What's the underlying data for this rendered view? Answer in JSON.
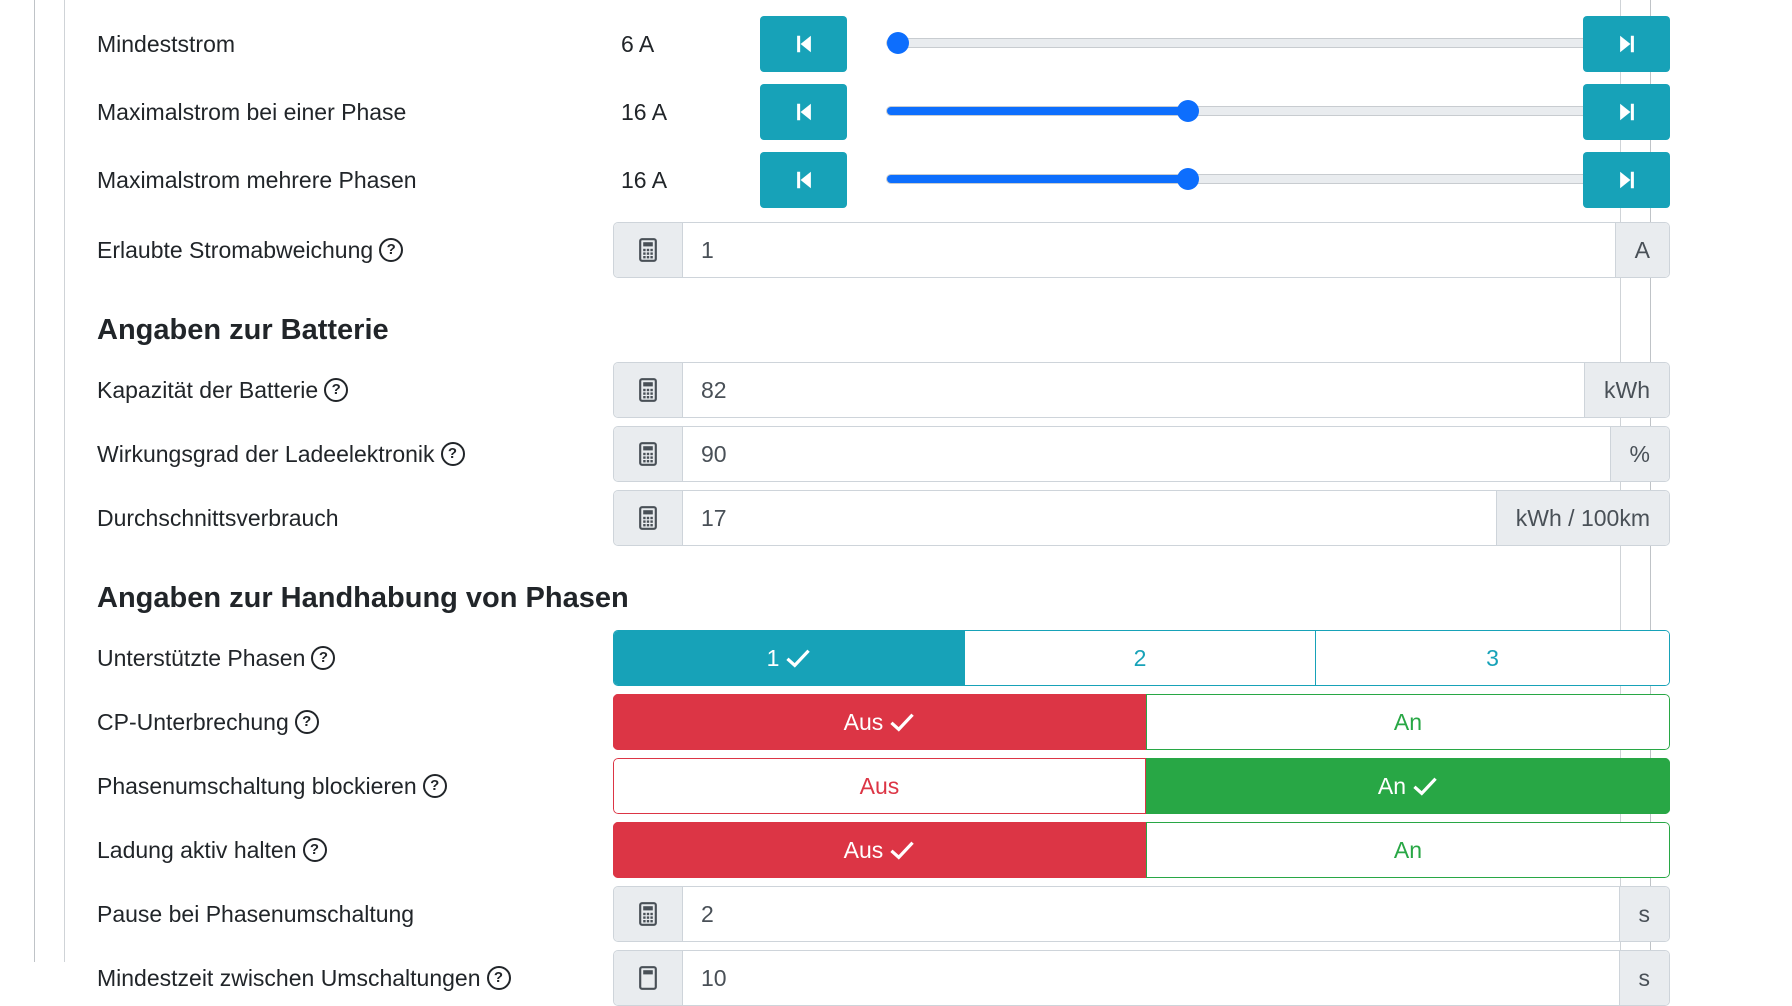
{
  "sliders": [
    {
      "label": "Mindeststrom",
      "value": "6 A",
      "fraction": 0.0
    },
    {
      "label": "Maximalstrom bei einer Phase",
      "value": "16 A",
      "fraction": 0.39
    },
    {
      "label": "Maximalstrom mehrere Phasen",
      "value": "16 A",
      "fraction": 0.39
    }
  ],
  "stromabweichung": {
    "label": "Erlaubte Stromabweichung",
    "help": "?",
    "value": "1",
    "unit": "A"
  },
  "battery": {
    "title": "Angaben zur Batterie",
    "capacity": {
      "label": "Kapazität der Batterie",
      "help": "?",
      "value": "82",
      "unit": "kWh"
    },
    "efficiency": {
      "label": "Wirkungsgrad der Ladeelektronik",
      "help": "?",
      "value": "90",
      "unit": "%"
    },
    "consumption": {
      "label": "Durchschnittsverbrauch",
      "value": "17",
      "unit": "kWh / 100km"
    }
  },
  "phases": {
    "title": "Angaben zur Handhabung von Phasen",
    "supported": {
      "label": "Unterstützte Phasen",
      "help": "?",
      "options": [
        "1",
        "2",
        "3"
      ],
      "selected": "1"
    },
    "cp_interrupt": {
      "label": "CP-Unterbrechung",
      "help": "?",
      "off": "Aus",
      "on": "An",
      "state": "Aus"
    },
    "block_switch": {
      "label": "Phasenumschaltung blockieren",
      "help": "?",
      "off": "Aus",
      "on": "An",
      "state": "An"
    },
    "keep_active": {
      "label": "Ladung aktiv halten",
      "help": "?",
      "off": "Aus",
      "on": "An",
      "state": "Aus"
    },
    "pause": {
      "label": "Pause bei Phasenumschaltung",
      "value": "2",
      "unit": "s"
    },
    "min_time": {
      "label": "Mindestzeit zwischen Umschaltungen",
      "help": "?",
      "value": "10",
      "unit": "s"
    }
  },
  "colors": {
    "info": "#17a2b8",
    "danger": "#dc3545",
    "success": "#28a745",
    "primary": "#0d6efd"
  },
  "icons": {
    "prev": "skip-start-icon",
    "next": "skip-end-icon",
    "prefix": "calculator-icon",
    "selected": "check-icon"
  }
}
